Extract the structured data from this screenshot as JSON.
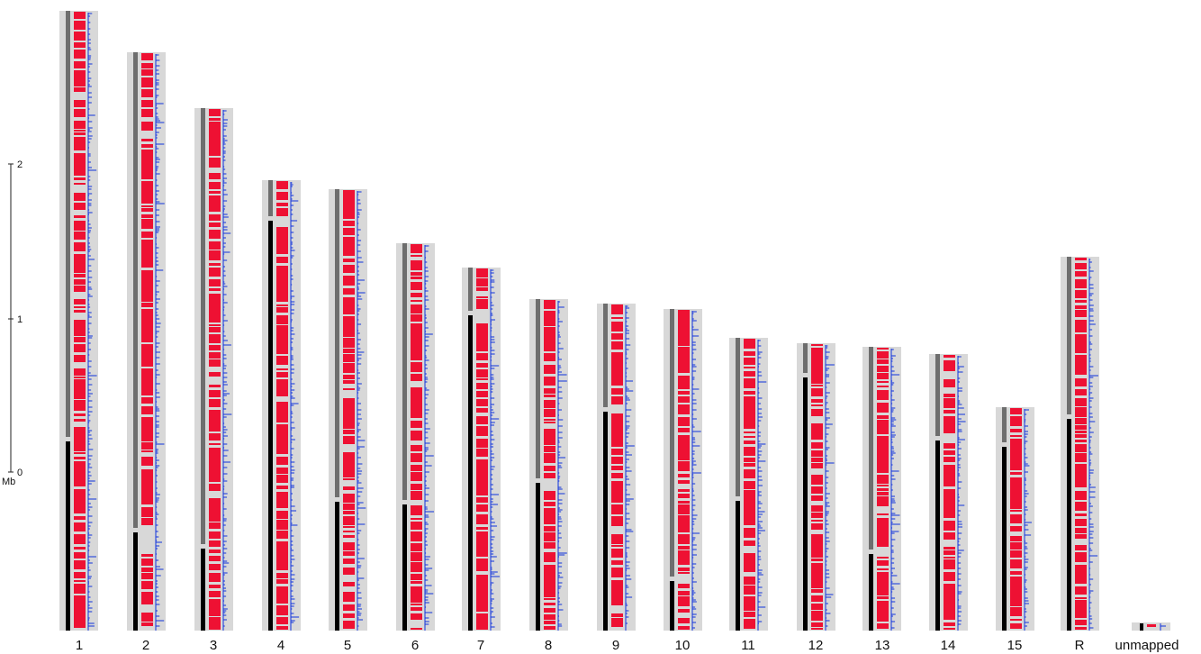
{
  "scale_bar": {
    "unit": "Mb",
    "ticks": [
      {
        "label": "2",
        "value": 2
      },
      {
        "label": "1",
        "value": 1
      },
      {
        "label": "0",
        "value": 0
      }
    ]
  },
  "colors": {
    "background_band": "#d8d8d8",
    "dark_segment": "#000000",
    "gray_segment": "#6e6e6e",
    "feature": "#ee1133",
    "signal": "#1133dd",
    "text": "#111111"
  },
  "chromosomes": [
    {
      "label": "1"
    },
    {
      "label": "2"
    },
    {
      "label": "3"
    },
    {
      "label": "4"
    },
    {
      "label": "5"
    },
    {
      "label": "6"
    },
    {
      "label": "7"
    },
    {
      "label": "8"
    },
    {
      "label": "9"
    },
    {
      "label": "10"
    },
    {
      "label": "11"
    },
    {
      "label": "12"
    },
    {
      "label": "13"
    },
    {
      "label": "14"
    },
    {
      "label": "15"
    },
    {
      "label": "R"
    },
    {
      "label": "unmapped"
    }
  ]
}
